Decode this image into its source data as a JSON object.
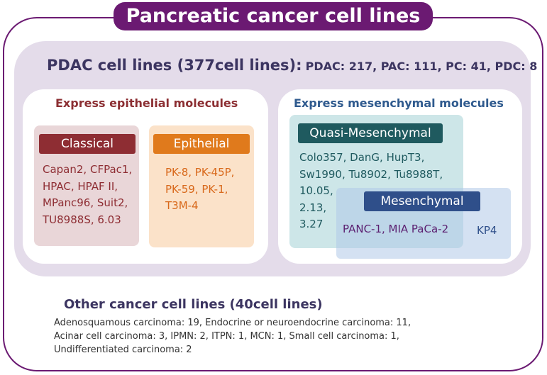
{
  "title": "Pancreatic cancer cell lines",
  "pdac": {
    "heading": "PDAC cell lines (377cell lines):",
    "counts": "PDAC: 217, PAC: 111, PC: 41, PDC: 8"
  },
  "epithelial_group": {
    "heading": "Express epithelial molecules",
    "classical": {
      "label": "Classical",
      "lines": [
        "Capan2, CFPac1,",
        "HPAC, HPAF II,",
        "MPanc96, Suit2,",
        "TU8988S, 6.03"
      ]
    },
    "epithelial": {
      "label": "Epithelial",
      "lines": [
        "PK-8, PK-45P,",
        "PK-59, PK-1,",
        "T3M-4"
      ]
    }
  },
  "mesenchymal_group": {
    "heading": "Express mesenchymal molecules",
    "quasi": {
      "label": "Quasi-Mesenchymal",
      "lines": [
        "Colo357, DanG, HupT3,",
        "Sw1990, Tu8902, Tu8988T,",
        "10.05,",
        "2.13,",
        "3.27"
      ]
    },
    "mesenchymal": {
      "label": "Mesenchymal",
      "shared": "PANC-1, MIA PaCa-2",
      "only": "KP4"
    }
  },
  "other": {
    "heading": "Other cancer cell lines (40cell lines)",
    "lines": [
      "Adenosquamous carcinoma: 19, Endocrine or neuroendocrine carcinoma: 11,",
      "Acinar cell carcinoma: 3, IPMN: 2, ITPN: 1, MCN: 1, Small cell carcinoma: 1,",
      "Undifferentiated carcinoma: 2"
    ]
  },
  "colors": {
    "brand": "#6b1a72",
    "classical": "#8e2d33",
    "epithelial": "#e07a1c",
    "quasi": "#1f5a5f",
    "mesenchymal": "#2f4f8a"
  }
}
